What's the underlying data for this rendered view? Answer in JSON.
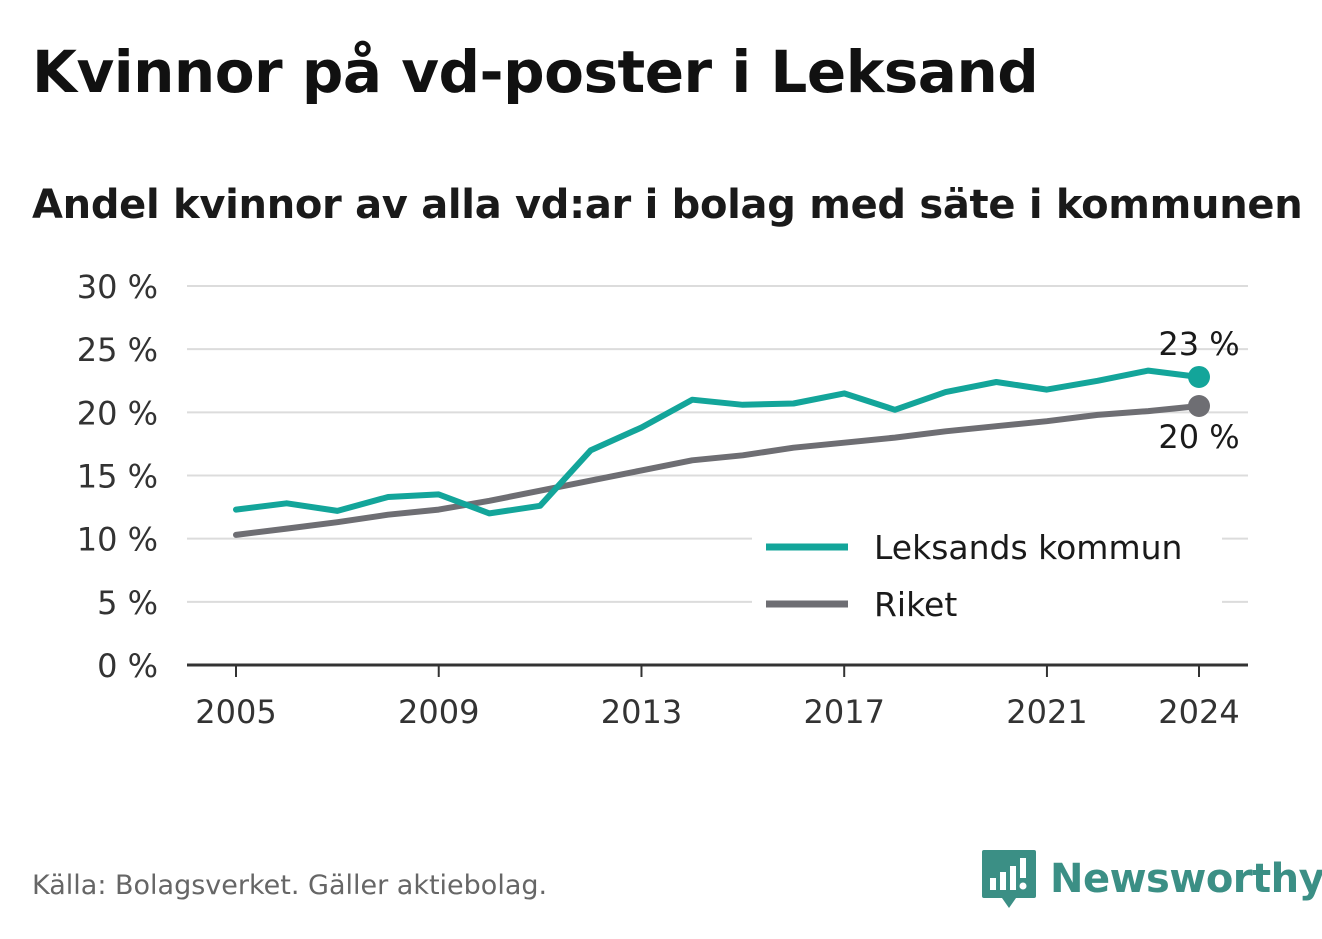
{
  "title": "Kvinnor på vd-poster i Leksand",
  "subtitle": "Andel kvinnor av alla vd:ar i bolag med säte i kommunen",
  "footer": {
    "source": "Källa: Bolagsverket. Gäller aktiebolag.",
    "brand": "Newsworthy",
    "brand_icon": "newsworthy-logo-icon"
  },
  "chart_data": {
    "type": "line",
    "x": [
      2005,
      2006,
      2007,
      2008,
      2009,
      2010,
      2011,
      2012,
      2013,
      2014,
      2015,
      2016,
      2017,
      2018,
      2019,
      2020,
      2021,
      2022,
      2023,
      2024
    ],
    "x_ticks": [
      2005,
      2009,
      2013,
      2017,
      2021,
      2024
    ],
    "y_ticks": [
      0,
      5,
      10,
      15,
      20,
      25,
      30
    ],
    "y_tick_labels": [
      "0 %",
      "5 %",
      "10 %",
      "15 %",
      "20 %",
      "25 %",
      "30 %"
    ],
    "ylim": [
      0,
      30
    ],
    "xlim": [
      2004,
      2025
    ],
    "grid": true,
    "legend_position": "bottom-right",
    "series": [
      {
        "name": "Leksands kommun",
        "color": "#13a59a",
        "values": [
          12.3,
          12.8,
          12.2,
          13.3,
          13.5,
          12.0,
          12.6,
          17.0,
          18.8,
          21.0,
          20.6,
          20.7,
          21.5,
          20.2,
          21.6,
          22.4,
          21.8,
          22.5,
          23.3,
          22.8
        ],
        "end_label": "23 %"
      },
      {
        "name": "Riket",
        "color": "#6e6e73",
        "values": [
          10.3,
          10.8,
          11.3,
          11.9,
          12.3,
          13.0,
          13.8,
          14.6,
          15.4,
          16.2,
          16.6,
          17.2,
          17.6,
          18.0,
          18.5,
          18.9,
          19.3,
          19.8,
          20.1,
          20.5
        ],
        "end_label": "20 %"
      }
    ]
  }
}
